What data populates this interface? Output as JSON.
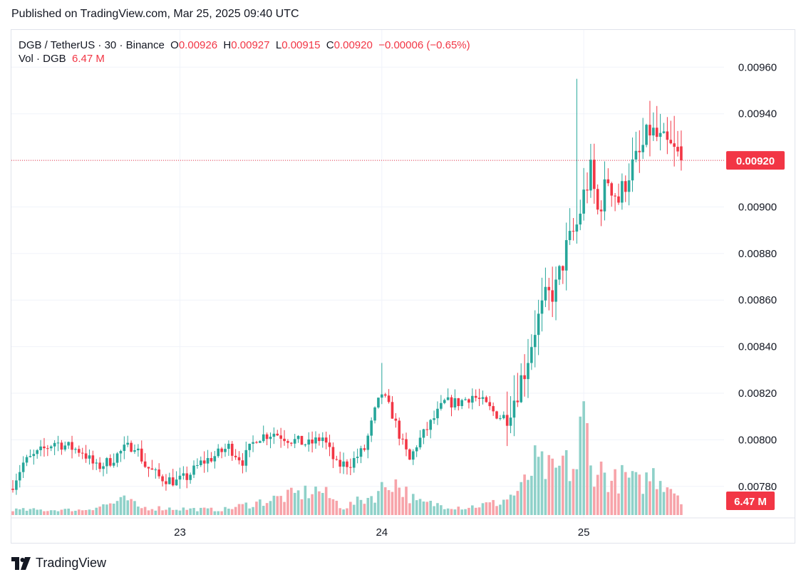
{
  "header": {
    "published": "Published on TradingView.com, Mar 25, 2025 09:40 UTC"
  },
  "legend": {
    "symbol": "DGB / TetherUS · 30 · Binance",
    "open_label": "O",
    "open": "0.00926",
    "high_label": "H",
    "high": "0.00927",
    "low_label": "L",
    "low": "0.00915",
    "close_label": "C",
    "close": "0.00920",
    "change": "−0.00006 (−0.65%)",
    "vol_label": "Vol · DGB",
    "vol_value": "6.47 M"
  },
  "footer": {
    "brand": "TradingView"
  },
  "colors": {
    "up": "#26a69a",
    "down": "#f23645",
    "up_vol": "#8fd1c9",
    "down_vol": "#f7a3a9",
    "grid": "#f0f3fa"
  },
  "chart_data": {
    "type": "candlestick",
    "ylim": [
      0.00768,
      0.00976
    ],
    "yticks": [
      "0.00780",
      "0.00800",
      "0.00820",
      "0.00840",
      "0.00860",
      "0.00880",
      "0.00900",
      "0.00920",
      "0.00940",
      "0.00960"
    ],
    "xticks": [
      {
        "label": "23",
        "index": 48
      },
      {
        "label": "24",
        "index": 106
      },
      {
        "label": "25",
        "index": 164
      }
    ],
    "last_price_label": "0.00920",
    "last_price": 0.0092,
    "last_volume_label": "6.47 M",
    "key_points": [
      [
        0,
        0.00781
      ],
      [
        3,
        0.0079
      ],
      [
        7,
        0.00794
      ],
      [
        12,
        0.00799
      ],
      [
        16,
        0.00797
      ],
      [
        20,
        0.00795
      ],
      [
        24,
        0.00788
      ],
      [
        28,
        0.00791
      ],
      [
        32,
        0.00796
      ],
      [
        35,
        0.00798
      ],
      [
        38,
        0.00789
      ],
      [
        42,
        0.00784
      ],
      [
        47,
        0.00782
      ],
      [
        50,
        0.00784
      ],
      [
        54,
        0.0079
      ],
      [
        58,
        0.00793
      ],
      [
        62,
        0.00797
      ],
      [
        66,
        0.00791
      ],
      [
        70,
        0.00801
      ],
      [
        75,
        0.00803
      ],
      [
        80,
        0.008
      ],
      [
        85,
        0.00798
      ],
      [
        89,
        0.00801
      ],
      [
        93,
        0.00789
      ],
      [
        97,
        0.0079
      ],
      [
        101,
        0.00796
      ],
      [
        104,
        0.00812
      ],
      [
        106,
        0.0082
      ],
      [
        109,
        0.00811
      ],
      [
        112,
        0.00798
      ],
      [
        114,
        0.00791
      ],
      [
        116,
        0.00798
      ],
      [
        120,
        0.00807
      ],
      [
        124,
        0.00816
      ],
      [
        128,
        0.00816
      ],
      [
        132,
        0.00819
      ],
      [
        135,
        0.00816
      ],
      [
        138,
        0.00812
      ],
      [
        141,
        0.00809
      ],
      [
        144,
        0.00818
      ],
      [
        147,
        0.0083
      ],
      [
        150,
        0.00848
      ],
      [
        153,
        0.0086
      ],
      [
        156,
        0.00865
      ],
      [
        159,
        0.00882
      ],
      [
        162,
        0.00892
      ],
      [
        164,
        0.00905
      ],
      [
        166,
        0.00915
      ],
      [
        168,
        0.00898
      ],
      [
        171,
        0.00912
      ],
      [
        174,
        0.00903
      ],
      [
        177,
        0.00915
      ],
      [
        180,
        0.00922
      ],
      [
        183,
        0.00933
      ],
      [
        186,
        0.00928
      ],
      [
        189,
        0.00925
      ],
      [
        192,
        0.0092
      ]
    ],
    "volume_key_points": [
      [
        0,
        2
      ],
      [
        20,
        2
      ],
      [
        33,
        6
      ],
      [
        36,
        3
      ],
      [
        60,
        2
      ],
      [
        88,
        10
      ],
      [
        95,
        3
      ],
      [
        104,
        8
      ],
      [
        109,
        14
      ],
      [
        116,
        5
      ],
      [
        130,
        3
      ],
      [
        140,
        5
      ],
      [
        146,
        10
      ],
      [
        150,
        20
      ],
      [
        156,
        16
      ],
      [
        158,
        21
      ],
      [
        160,
        18
      ],
      [
        162,
        19
      ],
      [
        164,
        45
      ],
      [
        166,
        18
      ],
      [
        168,
        19
      ],
      [
        172,
        13
      ],
      [
        176,
        15
      ],
      [
        180,
        12
      ],
      [
        184,
        16
      ],
      [
        188,
        13
      ],
      [
        192,
        7
      ]
    ]
  }
}
